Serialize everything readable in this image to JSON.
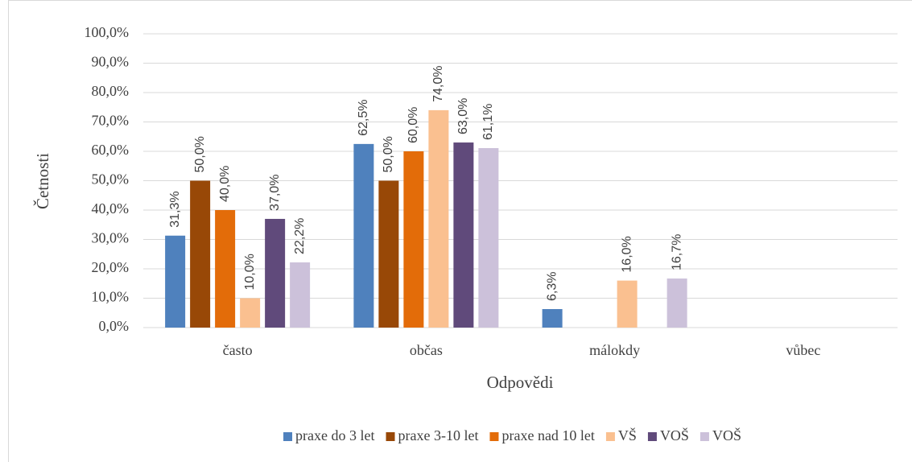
{
  "chart_data": {
    "type": "bar",
    "x_label": "Odpovědi",
    "y_label": "Četnosti",
    "categories": [
      "často",
      "občas",
      "málokdy",
      "vůbec"
    ],
    "series": [
      {
        "name": "praxe do 3 let",
        "color": "#4f81bd",
        "values": [
          31.3,
          62.5,
          6.3,
          null
        ],
        "value_labels": [
          "31,3%",
          "62,5%",
          "6,3%",
          null
        ]
      },
      {
        "name": "praxe 3-10 let",
        "color": "#984807",
        "values": [
          50.0,
          50.0,
          null,
          null
        ],
        "value_labels": [
          "50,0%",
          "50,0%",
          null,
          null
        ]
      },
      {
        "name": "praxe nad 10 let",
        "color": "#e36c09",
        "values": [
          40.0,
          60.0,
          null,
          null
        ],
        "value_labels": [
          "40,0%",
          "60,0%",
          null,
          null
        ]
      },
      {
        "name": "VŠ",
        "color": "#fac090",
        "values": [
          10.0,
          74.0,
          16.0,
          null
        ],
        "value_labels": [
          "10,0%",
          "74,0%",
          "16,0%",
          null
        ]
      },
      {
        "name": "VOŠ",
        "color": "#604a7b",
        "values": [
          37.0,
          63.0,
          null,
          null
        ],
        "value_labels": [
          "37,0%",
          "63,0%",
          null,
          null
        ]
      },
      {
        "name": "VOŠ",
        "color": "#ccc1da",
        "values": [
          22.2,
          61.1,
          16.7,
          null
        ],
        "value_labels": [
          "22,2%",
          "61,1%",
          "16,7%",
          null
        ]
      }
    ],
    "ylim": [
      0,
      100
    ],
    "yticks": [
      {
        "value": 0,
        "label": "0,0%"
      },
      {
        "value": 10,
        "label": "10,0%"
      },
      {
        "value": 20,
        "label": "20,0%"
      },
      {
        "value": 30,
        "label": "30,0%"
      },
      {
        "value": 40,
        "label": "40,0%"
      },
      {
        "value": 50,
        "label": "50,0%"
      },
      {
        "value": 60,
        "label": "60,0%"
      },
      {
        "value": 70,
        "label": "70,0%"
      },
      {
        "value": 80,
        "label": "80,0%"
      },
      {
        "value": 90,
        "label": "90,0%"
      },
      {
        "value": 100,
        "label": "100,0%"
      }
    ],
    "grid": true,
    "legend": "bottom"
  }
}
